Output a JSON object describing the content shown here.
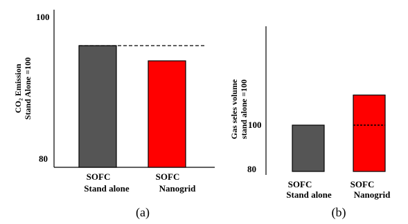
{
  "chart_data": [
    {
      "type": "bar",
      "title": "",
      "panel_label": "(a)",
      "ylabel_lines": [
        "CO₂ Emission",
        "Stand Alone =100"
      ],
      "yticks": [
        100,
        80
      ],
      "ylim": [
        80,
        100
      ],
      "categories": [
        [
          "SOFC",
          "Stand alone"
        ],
        [
          "SOFC",
          "Nanogrid"
        ]
      ],
      "values": [
        96,
        94
      ],
      "colors": [
        "#555555",
        "#ff0000"
      ],
      "reference_line": 96
    },
    {
      "type": "bar",
      "title": "",
      "panel_label": "(b)",
      "ylabel_lines": [
        "Gas seles volume",
        "stand alone =100"
      ],
      "yticks": [
        100,
        80
      ],
      "ylim": [
        80,
        120
      ],
      "categories": [
        [
          "SOFC",
          "Stand alone"
        ],
        [
          "SOFC",
          "Nanogrid"
        ]
      ],
      "values": [
        100,
        113
      ],
      "colors": [
        "#555555",
        "#ff0000"
      ],
      "reference_line": 100
    }
  ]
}
